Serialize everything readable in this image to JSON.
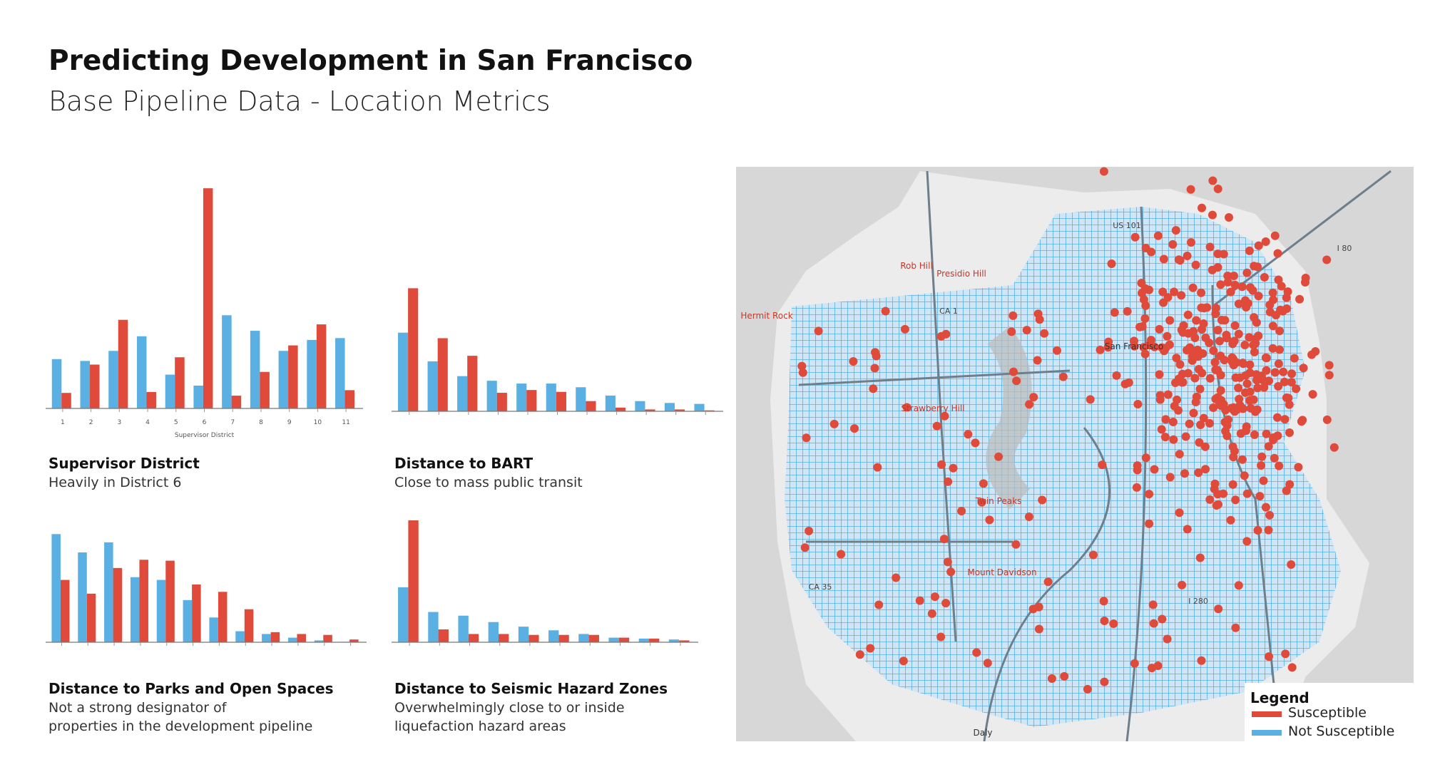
{
  "header": {
    "title": "Predicting Development in San Francisco",
    "subtitle": "Base Pipeline Data - Location Metrics"
  },
  "legend": {
    "title": "Legend",
    "items": [
      {
        "name": "Susceptible",
        "color": "#e04a3a"
      },
      {
        "name": "Not Susceptible",
        "color": "#5ab0e2"
      }
    ]
  },
  "chart_data": [
    {
      "type": "bar",
      "title": "Supervisor District",
      "subtitle": [
        "Heavily in District 6"
      ],
      "x_label": "Supervisor District",
      "categories": [
        "1",
        "2",
        "3",
        "4",
        "5",
        "6",
        "7",
        "8",
        "9",
        "10",
        "11"
      ],
      "series": [
        {
          "color": "#5ab0e2",
          "values": [
            54,
            52,
            63,
            79,
            37,
            25,
            102,
            85,
            63,
            75,
            77
          ]
        },
        {
          "color": "#e04a3a",
          "values": [
            17,
            48,
            97,
            18,
            56,
            241,
            14,
            40,
            69,
            92,
            20
          ]
        }
      ],
      "ylim": [
        0,
        245
      ]
    },
    {
      "type": "bar",
      "title": "Distance to BART",
      "subtitle": [
        "Close to mass public transit"
      ],
      "categories": [
        null,
        null,
        null,
        null,
        null,
        null,
        null,
        null,
        null,
        null,
        null
      ],
      "series": [
        {
          "color": "#5ab0e2",
          "values": [
            85,
            54,
            38,
            33,
            30,
            30,
            26,
            17,
            11,
            9,
            8
          ]
        },
        {
          "color": "#e04a3a",
          "values": [
            133,
            79,
            60,
            20,
            23,
            21,
            11,
            4,
            2,
            2,
            1
          ]
        }
      ],
      "ylim": [
        0,
        245
      ]
    },
    {
      "type": "bar",
      "title": "Distance to Parks and Open Spaces",
      "subtitle": [
        "Not a strong designator of",
        "properties in the development pipeline"
      ],
      "categories": [
        null,
        null,
        null,
        null,
        null,
        null,
        null,
        null,
        null,
        null,
        null,
        null
      ],
      "series": [
        {
          "color": "#5ab0e2",
          "values": [
            118,
            98,
            109,
            71,
            68,
            46,
            27,
            12,
            9,
            5,
            2,
            0.5
          ]
        },
        {
          "color": "#e04a3a",
          "values": [
            68,
            53,
            81,
            90,
            89,
            63,
            55,
            36,
            11,
            9,
            8,
            3
          ]
        }
      ],
      "ylim": [
        0,
        140
      ]
    },
    {
      "type": "bar",
      "title": "Distance to Seismic Hazard Zones",
      "subtitle": [
        "Overwhelmingly close to or inside",
        "liquefaction hazard areas"
      ],
      "categories": [
        null,
        null,
        null,
        null,
        null,
        null,
        null,
        null,
        null,
        null
      ],
      "series": [
        {
          "color": "#5ab0e2",
          "values": [
            60,
            33,
            29,
            22,
            17,
            13,
            9,
            5,
            4,
            3
          ]
        },
        {
          "color": "#e04a3a",
          "values": [
            133,
            14,
            9,
            9,
            8,
            8,
            8,
            5,
            4,
            2
          ]
        }
      ],
      "ylim": [
        0,
        140
      ]
    }
  ],
  "map": {
    "labels": [
      "Rob Hill",
      "Presidio Hill",
      "Hermit Rock",
      "San Francisco",
      "Strawberry Hill",
      "Twin Peaks",
      "Mount Davidson",
      "Daly",
      "US 101",
      "I 80",
      "CA 1",
      "CA 35",
      "I 280"
    ]
  }
}
